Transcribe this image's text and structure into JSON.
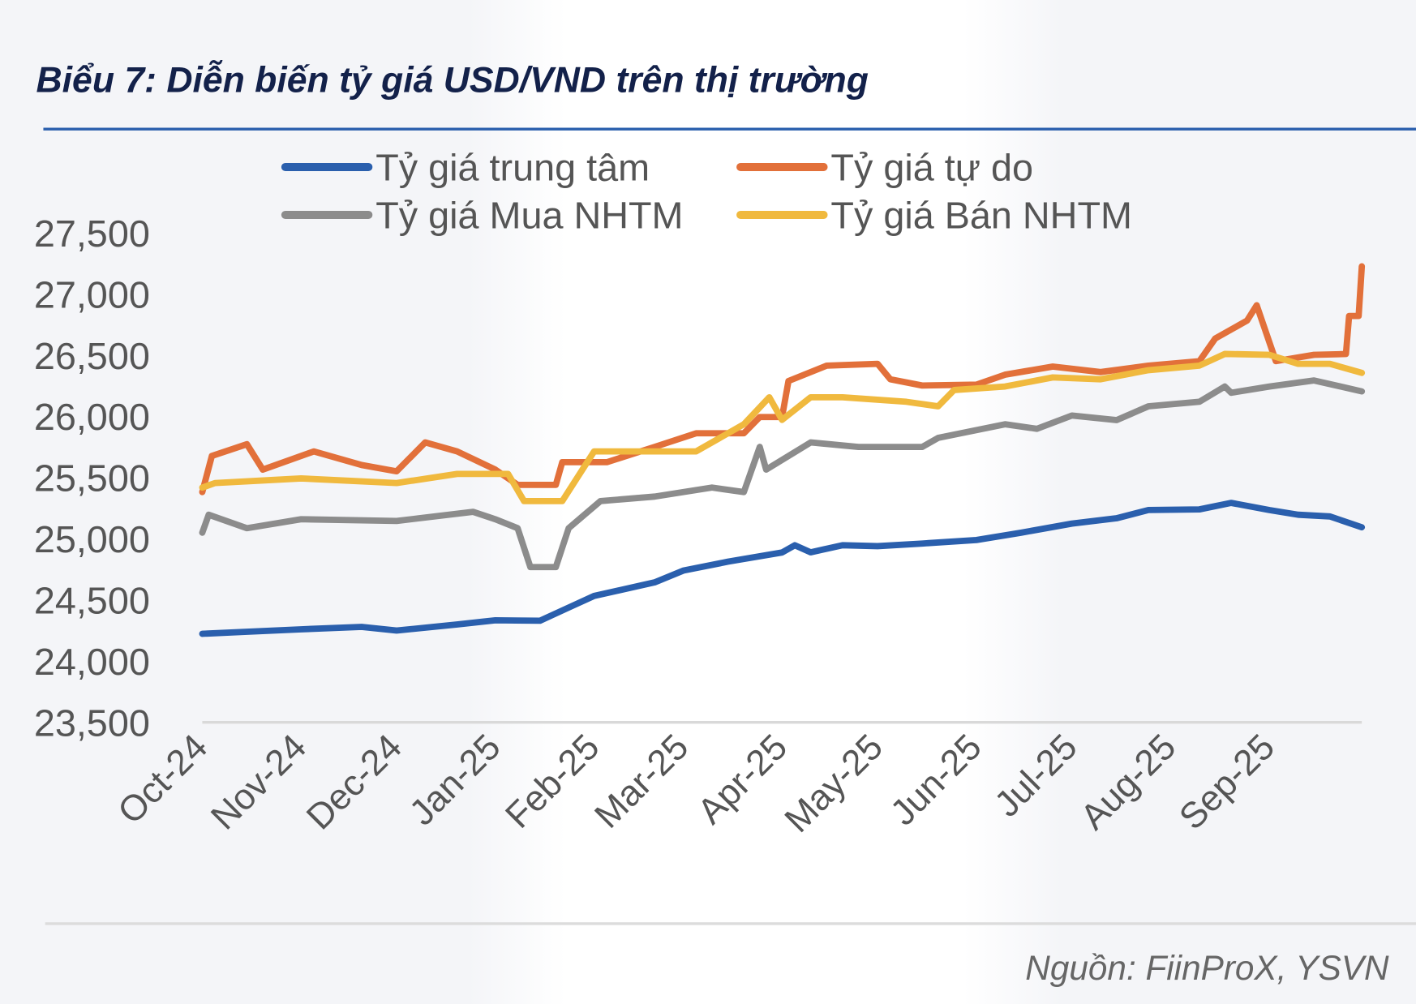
{
  "title": "Biểu 7: Diễn biến tỷ giá USD/VND trên thị trường",
  "source": "Nguồn: FiinProX, YSVN",
  "chart_data": {
    "type": "line",
    "title": "Biểu 7: Diễn biến tỷ giá USD/VND trên thị trường",
    "xlabel": "",
    "ylabel": "",
    "ylim": [
      23500,
      27500
    ],
    "xlim": [
      "2024-10-01",
      "2025-09-30"
    ],
    "yticks": [
      "23,500",
      "24,000",
      "24,500",
      "25,000",
      "25,500",
      "26,000",
      "26,500",
      "27,000",
      "27,500"
    ],
    "ytick_values": [
      23500,
      24000,
      24500,
      25000,
      25500,
      26000,
      26500,
      27000,
      27500
    ],
    "xticks": [
      "Oct-24",
      "Nov-24",
      "Dec-24",
      "Jan-25",
      "Feb-25",
      "Mar-25",
      "Apr-25",
      "May-25",
      "Jun-25",
      "Jul-25",
      "Aug-25",
      "Sep-25"
    ],
    "xtick_dates": [
      "2024-10-01",
      "2024-11-01",
      "2024-12-01",
      "2025-01-01",
      "2025-02-01",
      "2025-03-01",
      "2025-04-01",
      "2025-05-01",
      "2025-06-01",
      "2025-07-01",
      "2025-08-01",
      "2025-09-01"
    ],
    "grid": false,
    "legend": "top",
    "series": [
      {
        "name": "Tỷ giá trung tâm",
        "color": "#2a5fad",
        "points": [
          [
            "2024-10-01",
            24223
          ],
          [
            "2024-10-15",
            24240
          ],
          [
            "2024-11-01",
            24260
          ],
          [
            "2024-11-20",
            24280
          ],
          [
            "2024-12-01",
            24250
          ],
          [
            "2024-12-20",
            24300
          ],
          [
            "2025-01-01",
            24334
          ],
          [
            "2025-01-15",
            24330
          ],
          [
            "2025-01-25",
            24450
          ],
          [
            "2025-02-01",
            24533
          ],
          [
            "2025-02-20",
            24644
          ],
          [
            "2025-03-01",
            24740
          ],
          [
            "2025-03-15",
            24813
          ],
          [
            "2025-04-01",
            24888
          ],
          [
            "2025-04-05",
            24947
          ],
          [
            "2025-04-10",
            24890
          ],
          [
            "2025-04-20",
            24947
          ],
          [
            "2025-05-01",
            24940
          ],
          [
            "2025-05-15",
            24961
          ],
          [
            "2025-06-01",
            24990
          ],
          [
            "2025-06-15",
            25050
          ],
          [
            "2025-07-01",
            25124
          ],
          [
            "2025-07-15",
            25168
          ],
          [
            "2025-07-25",
            25235
          ],
          [
            "2025-08-10",
            25240
          ],
          [
            "2025-08-20",
            25293
          ],
          [
            "2025-09-01",
            25235
          ],
          [
            "2025-09-10",
            25197
          ],
          [
            "2025-09-20",
            25183
          ],
          [
            "2025-09-30",
            25094
          ]
        ]
      },
      {
        "name": "Tỷ giá tự do",
        "color": "#e2703a",
        "points": [
          [
            "2024-10-01",
            25382
          ],
          [
            "2024-10-04",
            25677
          ],
          [
            "2024-10-15",
            25773
          ],
          [
            "2024-10-20",
            25566
          ],
          [
            "2024-11-05",
            25714
          ],
          [
            "2024-11-20",
            25603
          ],
          [
            "2024-12-01",
            25552
          ],
          [
            "2024-12-10",
            25788
          ],
          [
            "2024-12-20",
            25714
          ],
          [
            "2025-01-01",
            25566
          ],
          [
            "2025-01-08",
            25441
          ],
          [
            "2025-01-20",
            25441
          ],
          [
            "2025-01-22",
            25626
          ],
          [
            "2025-02-05",
            25626
          ],
          [
            "2025-02-20",
            25751
          ],
          [
            "2025-03-05",
            25862
          ],
          [
            "2025-03-20",
            25862
          ],
          [
            "2025-03-25",
            25995
          ],
          [
            "2025-04-01",
            25995
          ],
          [
            "2025-04-03",
            26290
          ],
          [
            "2025-04-15",
            26415
          ],
          [
            "2025-05-01",
            26430
          ],
          [
            "2025-05-05",
            26304
          ],
          [
            "2025-05-15",
            26253
          ],
          [
            "2025-06-01",
            26260
          ],
          [
            "2025-06-10",
            26341
          ],
          [
            "2025-06-25",
            26408
          ],
          [
            "2025-07-10",
            26363
          ],
          [
            "2025-07-25",
            26415
          ],
          [
            "2025-08-10",
            26452
          ],
          [
            "2025-08-15",
            26637
          ],
          [
            "2025-08-25",
            26784
          ],
          [
            "2025-08-28",
            26909
          ],
          [
            "2025-09-03",
            26452
          ],
          [
            "2025-09-15",
            26504
          ],
          [
            "2025-09-25",
            26510
          ],
          [
            "2025-09-26",
            26821
          ],
          [
            "2025-09-29",
            26821
          ],
          [
            "2025-09-30",
            27227
          ]
        ]
      },
      {
        "name": "Tỷ giá Mua NHTM",
        "color": "#8c8c8c",
        "points": [
          [
            "2024-10-01",
            25050
          ],
          [
            "2024-10-03",
            25197
          ],
          [
            "2024-10-15",
            25087
          ],
          [
            "2024-11-01",
            25160
          ],
          [
            "2024-12-01",
            25146
          ],
          [
            "2024-12-25",
            25220
          ],
          [
            "2025-01-01",
            25160
          ],
          [
            "2025-01-08",
            25087
          ],
          [
            "2025-01-12",
            24769
          ],
          [
            "2025-01-20",
            24769
          ],
          [
            "2025-01-24",
            25087
          ],
          [
            "2025-02-03",
            25308
          ],
          [
            "2025-02-20",
            25345
          ],
          [
            "2025-03-10",
            25419
          ],
          [
            "2025-03-20",
            25382
          ],
          [
            "2025-03-25",
            25751
          ],
          [
            "2025-03-27",
            25566
          ],
          [
            "2025-04-10",
            25788
          ],
          [
            "2025-04-25",
            25751
          ],
          [
            "2025-05-15",
            25751
          ],
          [
            "2025-05-20",
            25825
          ],
          [
            "2025-06-10",
            25936
          ],
          [
            "2025-06-20",
            25899
          ],
          [
            "2025-07-01",
            26008
          ],
          [
            "2025-07-15",
            25970
          ],
          [
            "2025-07-25",
            26083
          ],
          [
            "2025-08-10",
            26120
          ],
          [
            "2025-08-18",
            26245
          ],
          [
            "2025-08-20",
            26194
          ],
          [
            "2025-09-01",
            26245
          ],
          [
            "2025-09-15",
            26294
          ],
          [
            "2025-09-30",
            26205
          ]
        ]
      },
      {
        "name": "Tỷ giá Bán NHTM",
        "color": "#f0b93e",
        "points": [
          [
            "2024-10-01",
            25419
          ],
          [
            "2024-10-05",
            25456
          ],
          [
            "2024-11-01",
            25493
          ],
          [
            "2024-12-01",
            25456
          ],
          [
            "2024-12-20",
            25530
          ],
          [
            "2025-01-05",
            25530
          ],
          [
            "2025-01-10",
            25308
          ],
          [
            "2025-01-22",
            25308
          ],
          [
            "2025-02-01",
            25714
          ],
          [
            "2025-02-20",
            25714
          ],
          [
            "2025-03-05",
            25714
          ],
          [
            "2025-03-20",
            25936
          ],
          [
            "2025-03-28",
            26157
          ],
          [
            "2025-04-01",
            25972
          ],
          [
            "2025-04-10",
            26157
          ],
          [
            "2025-04-20",
            26157
          ],
          [
            "2025-05-10",
            26120
          ],
          [
            "2025-05-20",
            26083
          ],
          [
            "2025-05-25",
            26216
          ],
          [
            "2025-06-10",
            26245
          ],
          [
            "2025-06-25",
            26319
          ],
          [
            "2025-07-10",
            26304
          ],
          [
            "2025-07-25",
            26378
          ],
          [
            "2025-08-10",
            26415
          ],
          [
            "2025-08-18",
            26511
          ],
          [
            "2025-09-01",
            26504
          ],
          [
            "2025-09-10",
            26430
          ],
          [
            "2025-09-20",
            26430
          ],
          [
            "2025-09-30",
            26356
          ]
        ]
      }
    ]
  }
}
